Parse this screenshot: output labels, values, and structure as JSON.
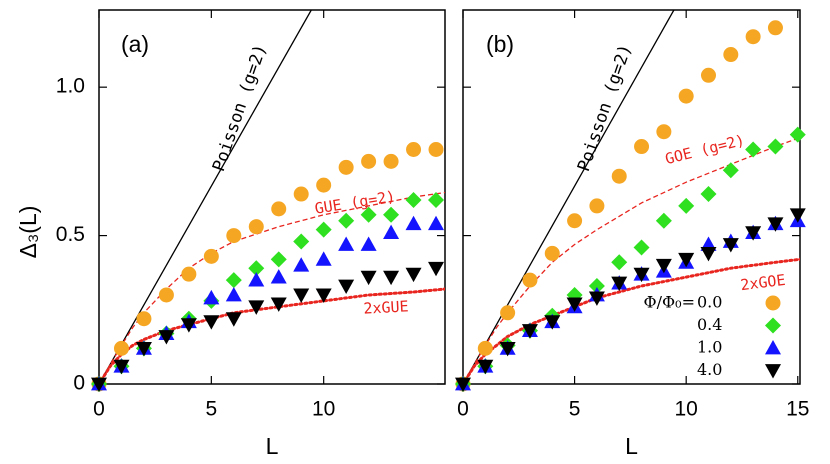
{
  "chart_data": [
    {
      "type": "scatter",
      "panel_label": "(a)",
      "xlabel": "L",
      "ylabel": "Δ₃(L)",
      "xlim": [
        0,
        15.4
      ],
      "ylim": [
        0,
        1.26
      ],
      "xticks": [
        0,
        5,
        10
      ],
      "yticks": [
        0,
        0.5,
        {
          "value": 1,
          "label": "1.0"
        }
      ],
      "series": [
        {
          "color": "#f5a623",
          "marker": "circle",
          "x": [
            0,
            1,
            2,
            3,
            4,
            5,
            6,
            7,
            8,
            9,
            10,
            11,
            12,
            13,
            14,
            15
          ],
          "values": [
            0,
            0.12,
            0.22,
            0.3,
            0.37,
            0.43,
            0.5,
            0.53,
            0.59,
            0.64,
            0.67,
            0.73,
            0.75,
            0.75,
            0.79,
            0.79
          ]
        },
        {
          "color": "#2ee01f",
          "marker": "diamond",
          "x": [
            0,
            1,
            2,
            3,
            4,
            5,
            6,
            7,
            8,
            9,
            10,
            11,
            12,
            13,
            14,
            15
          ],
          "values": [
            0,
            0.06,
            0.12,
            0.17,
            0.22,
            0.28,
            0.35,
            0.39,
            0.42,
            0.48,
            0.52,
            0.55,
            0.57,
            0.57,
            0.62,
            0.62
          ]
        },
        {
          "color": "#1414ff",
          "marker": "triangle-up",
          "x": [
            0,
            1,
            2,
            3,
            4,
            5,
            6,
            7,
            8,
            9,
            10,
            11,
            12,
            13,
            14,
            15
          ],
          "values": [
            0,
            0.06,
            0.12,
            0.17,
            0.21,
            0.29,
            0.3,
            0.35,
            0.36,
            0.4,
            0.42,
            0.47,
            0.47,
            0.51,
            0.54,
            0.54
          ]
        },
        {
          "color": "#000000",
          "marker": "triangle-down",
          "x": [
            0,
            1,
            2,
            3,
            4,
            5,
            6,
            7,
            8,
            9,
            10,
            11,
            12,
            13,
            14,
            15
          ],
          "values": [
            0,
            0.06,
            0.12,
            0.16,
            0.2,
            0.21,
            0.22,
            0.26,
            0.27,
            0.3,
            0.3,
            0.33,
            0.36,
            0.36,
            0.37,
            0.39
          ]
        }
      ],
      "curves": [
        {
          "name": "Poisson (g=2)",
          "color": "#000000",
          "style": "solid",
          "x": [
            0,
            9.45
          ],
          "values": [
            0,
            1.26
          ]
        },
        {
          "name": "GUE (g=2)",
          "color": "#e8251f",
          "style": "dashed",
          "x": [
            0,
            0.5,
            1,
            1.5,
            2,
            3,
            4,
            5,
            6,
            8,
            10,
            12,
            14,
            15.4
          ],
          "values": [
            0,
            0.065,
            0.13,
            0.19,
            0.24,
            0.32,
            0.39,
            0.44,
            0.48,
            0.53,
            0.57,
            0.6,
            0.63,
            0.645
          ]
        },
        {
          "name": "2xGUE",
          "color": "#e8251f",
          "style": "dotted",
          "x": [
            0,
            0.5,
            1,
            1.5,
            2,
            3,
            4,
            5,
            6,
            8,
            10,
            12,
            14,
            15.4
          ],
          "values": [
            0,
            0.06,
            0.1,
            0.13,
            0.15,
            0.18,
            0.2,
            0.22,
            0.24,
            0.26,
            0.28,
            0.3,
            0.31,
            0.32
          ]
        }
      ]
    },
    {
      "type": "scatter",
      "panel_label": "(b)",
      "xlabel": "L",
      "xlim": [
        0,
        15.1
      ],
      "ylim": [
        0,
        1.26
      ],
      "xticks": [
        0,
        5,
        10,
        15
      ],
      "legend_title": "Φ/Φ₀=",
      "series": [
        {
          "name": "0.0",
          "color": "#f5a623",
          "marker": "circle",
          "x": [
            0,
            1,
            2,
            3,
            4,
            5,
            6,
            7,
            8,
            9,
            10,
            11,
            12,
            13,
            14
          ],
          "values": [
            0,
            0.12,
            0.24,
            0.35,
            0.44,
            0.55,
            0.6,
            0.7,
            0.8,
            0.85,
            0.97,
            1.04,
            1.11,
            1.17,
            1.2
          ]
        },
        {
          "name": "0.4",
          "color": "#2ee01f",
          "marker": "diamond",
          "x": [
            0,
            1,
            2,
            3,
            4,
            5,
            6,
            7,
            8,
            9,
            10,
            11,
            12,
            13,
            14,
            15
          ],
          "values": [
            0,
            0.06,
            0.13,
            0.18,
            0.23,
            0.3,
            0.33,
            0.41,
            0.46,
            0.55,
            0.6,
            0.64,
            0.72,
            0.79,
            0.8,
            0.84
          ]
        },
        {
          "name": "1.0",
          "color": "#1414ff",
          "marker": "triangle-up",
          "x": [
            0,
            1,
            2,
            3,
            4,
            5,
            6,
            7,
            8,
            9,
            10,
            11,
            12,
            13,
            14,
            15
          ],
          "values": [
            0,
            0.06,
            0.12,
            0.18,
            0.21,
            0.26,
            0.3,
            0.34,
            0.37,
            0.38,
            0.41,
            0.47,
            0.48,
            0.51,
            0.54,
            0.55
          ]
        },
        {
          "name": "4.0",
          "color": "#000000",
          "marker": "triangle-down",
          "x": [
            0,
            1,
            2,
            3,
            4,
            5,
            6,
            7,
            8,
            9,
            10,
            11,
            12,
            13,
            14,
            15
          ],
          "values": [
            0,
            0.06,
            0.12,
            0.18,
            0.21,
            0.27,
            0.29,
            0.34,
            0.37,
            0.4,
            0.42,
            0.44,
            0.47,
            0.51,
            0.54,
            0.57
          ]
        }
      ],
      "curves": [
        {
          "name": "Poisson (g=2)",
          "color": "#000000",
          "style": "solid",
          "x": [
            0,
            9.45
          ],
          "values": [
            0,
            1.26
          ]
        },
        {
          "name": "GOE (g=2)",
          "color": "#e8251f",
          "style": "dashed",
          "x": [
            0,
            0.5,
            1,
            1.5,
            2,
            3,
            4,
            5,
            6,
            8,
            10,
            12,
            14,
            15.1
          ],
          "values": [
            0,
            0.065,
            0.13,
            0.19,
            0.24,
            0.33,
            0.41,
            0.47,
            0.52,
            0.61,
            0.68,
            0.74,
            0.8,
            0.83
          ]
        },
        {
          "name": "2xGOE",
          "color": "#e8251f",
          "style": "dotted",
          "x": [
            0,
            0.5,
            1,
            1.5,
            2,
            3,
            4,
            5,
            6,
            8,
            10,
            12,
            14,
            15.1
          ],
          "values": [
            0,
            0.06,
            0.1,
            0.13,
            0.16,
            0.2,
            0.23,
            0.26,
            0.29,
            0.33,
            0.36,
            0.39,
            0.41,
            0.42
          ]
        }
      ]
    }
  ]
}
